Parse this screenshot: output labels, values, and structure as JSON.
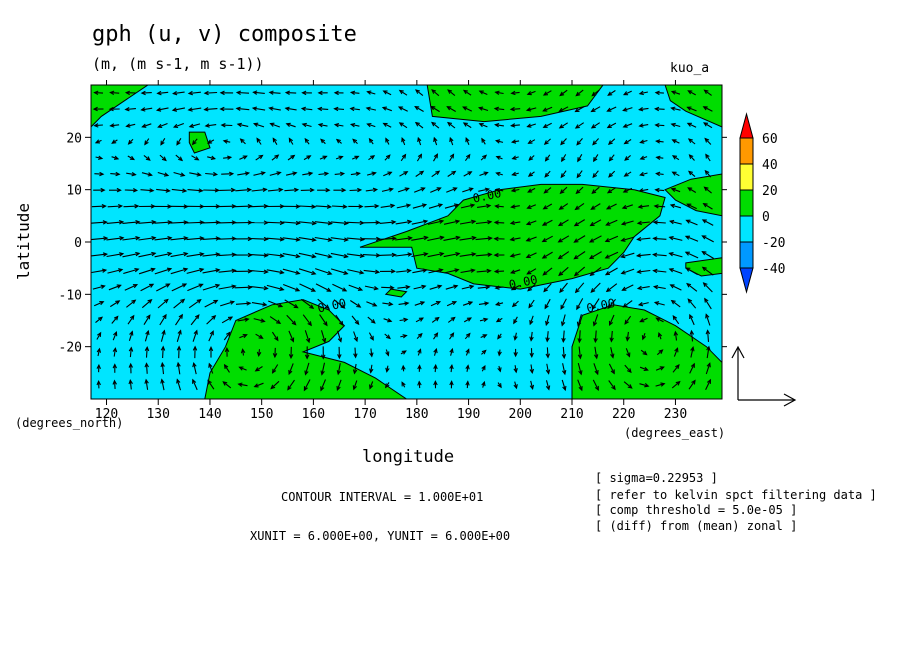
{
  "chart_data": {
    "type": "contour",
    "title": "gph (u, v) composite",
    "units_line": "(m, (m s-1, m s-1))",
    "label_right": "kuo_a",
    "xlabel": "longitude",
    "ylabel": "latitude",
    "x_unit_label": "(degrees_east)",
    "y_unit_label": "(degrees_north)",
    "xlim": [
      117,
      239
    ],
    "ylim": [
      -30,
      30
    ],
    "x_ticks": [
      120,
      130,
      140,
      150,
      160,
      170,
      180,
      190,
      200,
      210,
      220,
      230
    ],
    "y_ticks": [
      20,
      10,
      0,
      -10,
      -20
    ],
    "colorbar": {
      "levels": [
        "60",
        "40",
        "20",
        "0",
        "-20",
        "-40"
      ],
      "colors": [
        "#ff0000",
        "#ff9900",
        "#ffff33",
        "#00dd00",
        "#00e5ff",
        "#0099ff",
        "#0044ff"
      ]
    },
    "fill_colors": {
      "negative": "#00e5ff",
      "positive": "#00dd00"
    },
    "contour_labels": [
      {
        "text": "0.00",
        "lon": 191,
        "lat": 7.5
      },
      {
        "text": "0.00",
        "lon": 198,
        "lat": -9
      },
      {
        "text": "0.00",
        "lon": 161,
        "lat": -13.5
      },
      {
        "text": "0.00",
        "lon": 213,
        "lat": -13.5
      }
    ],
    "positive_regions": [
      [
        [
          117,
          30
        ],
        [
          128,
          30
        ],
        [
          119,
          24
        ],
        [
          117,
          22
        ]
      ],
      [
        [
          182,
          30
        ],
        [
          183,
          24
        ],
        [
          193,
          23
        ],
        [
          204,
          24
        ],
        [
          213,
          26
        ],
        [
          216,
          30
        ]
      ],
      [
        [
          228,
          30
        ],
        [
          239,
          30
        ],
        [
          239,
          22
        ],
        [
          232,
          25
        ],
        [
          229,
          27
        ]
      ],
      [
        [
          136,
          21
        ],
        [
          139,
          21
        ],
        [
          140,
          18
        ],
        [
          137,
          17
        ],
        [
          136,
          19
        ]
      ],
      [
        [
          169,
          -1
        ],
        [
          178,
          2
        ],
        [
          186,
          5
        ],
        [
          189,
          8
        ],
        [
          196,
          10
        ],
        [
          204,
          11
        ],
        [
          212,
          11
        ],
        [
          222,
          10
        ],
        [
          228,
          8.5
        ],
        [
          227,
          5
        ],
        [
          222,
          1
        ],
        [
          220,
          -2
        ],
        [
          217,
          -5
        ],
        [
          210,
          -7
        ],
        [
          200,
          -9
        ],
        [
          191,
          -8
        ],
        [
          186,
          -6
        ],
        [
          180,
          -5
        ],
        [
          179,
          -1
        ]
      ],
      [
        [
          228,
          10
        ],
        [
          233,
          12
        ],
        [
          239,
          13
        ],
        [
          239,
          5
        ],
        [
          234,
          6
        ],
        [
          230,
          8
        ]
      ],
      [
        [
          232,
          -4
        ],
        [
          239,
          -3
        ],
        [
          239,
          -6
        ],
        [
          235,
          -6.5
        ],
        [
          232,
          -5
        ]
      ],
      [
        [
          175,
          -9
        ],
        [
          178,
          -9.5
        ],
        [
          177,
          -10.5
        ],
        [
          174,
          -10
        ]
      ],
      [
        [
          139,
          -30
        ],
        [
          140,
          -25
        ],
        [
          143,
          -20
        ],
        [
          145,
          -15
        ],
        [
          152,
          -12
        ],
        [
          158,
          -11
        ],
        [
          163,
          -13
        ],
        [
          166,
          -16
        ],
        [
          163,
          -19
        ],
        [
          158,
          -21
        ],
        [
          166,
          -23
        ],
        [
          172,
          -26
        ],
        [
          178,
          -30
        ]
      ],
      [
        [
          210,
          -30
        ],
        [
          210,
          -20
        ],
        [
          212,
          -14
        ],
        [
          218,
          -12
        ],
        [
          224,
          -13
        ],
        [
          230,
          -16
        ],
        [
          236,
          -20
        ],
        [
          239,
          -23
        ],
        [
          239,
          -30
        ]
      ]
    ],
    "vector_scale": {
      "xunit": "6.000E+00",
      "yunit": "6.000E+00"
    }
  },
  "footer": {
    "contour_interval": "CONTOUR INTERVAL = 1.000E+01",
    "units": "XUNIT = 6.000E+00, YUNIT = 6.000E+00"
  },
  "notes": [
    "[ sigma=0.22953 ]",
    "[ refer to kelvin spct filtering data ]",
    "[ comp threshold = 5.0e-05 ]",
    "[ (diff) from (mean) zonal ]"
  ]
}
